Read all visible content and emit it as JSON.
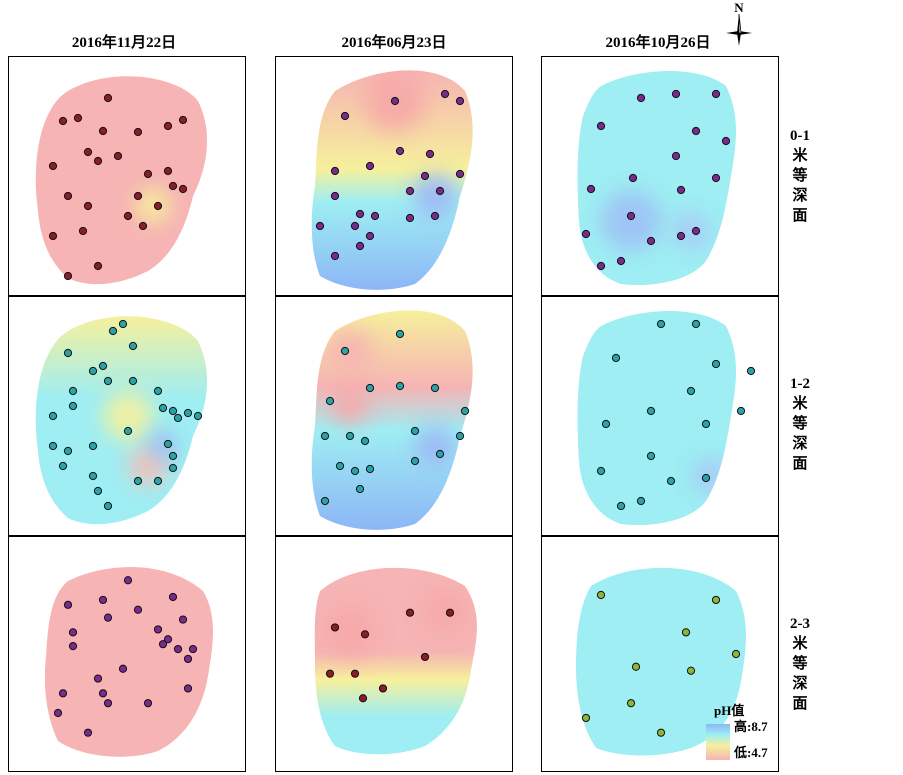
{
  "columns": [
    {
      "date": "2016年11月22日"
    },
    {
      "date": "2016年06月23日"
    },
    {
      "date": "2016年10月26日"
    }
  ],
  "rows": [
    {
      "label_lines": [
        "0-1",
        "米",
        "等",
        "深",
        "面"
      ]
    },
    {
      "label_lines": [
        "1-2",
        "米",
        "等",
        "深",
        "面"
      ]
    },
    {
      "label_lines": [
        "2-3",
        "米",
        "等",
        "深",
        "面"
      ]
    }
  ],
  "north_arrow": {
    "letter": "N",
    "icon": "north-arrow-icon"
  },
  "legend": {
    "title": "pH值",
    "high_label": "高:8.7",
    "low_label": "低:4.7",
    "high_value": 8.7,
    "low_value": 4.7
  },
  "colors": {
    "low_ph": "#f6b4b4",
    "mid_ph": "#f6f09c",
    "high_ph": "#9eeef3",
    "highest_ph": "#8db6f6",
    "point_red": "#8a1c2c",
    "point_purple": "#7a2a8c",
    "point_teal": "#2aa3a8",
    "point_green": "#8db53a",
    "panel_border": "#000000"
  }
}
